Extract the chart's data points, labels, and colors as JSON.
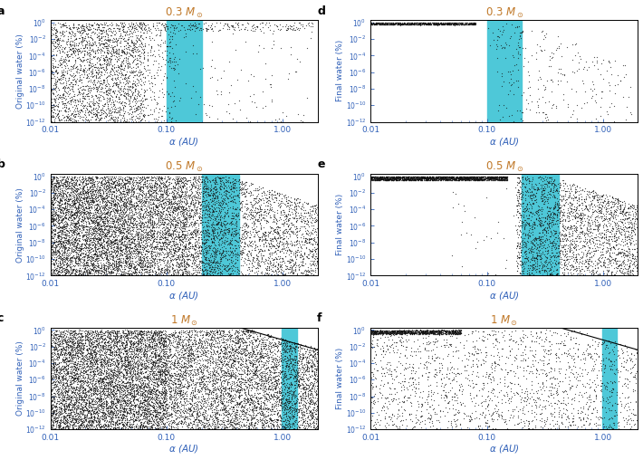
{
  "panels": [
    {
      "label": "a",
      "title": "0.3 $M_\\odot$",
      "ylabel": "Original water (%)",
      "hz": [
        0.1,
        0.2
      ],
      "row": 0,
      "col": 0
    },
    {
      "label": "b",
      "title": "0.5 $M_\\odot$",
      "ylabel": "Original water (%)",
      "hz": [
        0.2,
        0.42
      ],
      "row": 1,
      "col": 0
    },
    {
      "label": "c",
      "title": "1 $M_\\odot$",
      "ylabel": "Original water (%)",
      "hz": [
        0.98,
        1.32
      ],
      "row": 2,
      "col": 0
    },
    {
      "label": "d",
      "title": "0.3 $M_\\odot$",
      "ylabel": "Final water (%)",
      "hz": [
        0.1,
        0.2
      ],
      "row": 0,
      "col": 1
    },
    {
      "label": "e",
      "title": "0.5 $M_\\odot$",
      "ylabel": "Final water (%)",
      "hz": [
        0.2,
        0.42
      ],
      "row": 1,
      "col": 1
    },
    {
      "label": "f",
      "title": "1 $M_\\odot$",
      "ylabel": "Final water (%)",
      "hz": [
        0.98,
        1.32
      ],
      "row": 2,
      "col": 1
    }
  ],
  "xlim": [
    0.01,
    2.0
  ],
  "ymin": 1e-12,
  "ymax": 2.0,
  "xlabel": "$\\alpha$ (AU)",
  "hz_color": "#4EC8D8",
  "dot_color": "#111111",
  "title_color": "#C07828",
  "label_color": "#3060B8",
  "tick_color": "#3060B8"
}
